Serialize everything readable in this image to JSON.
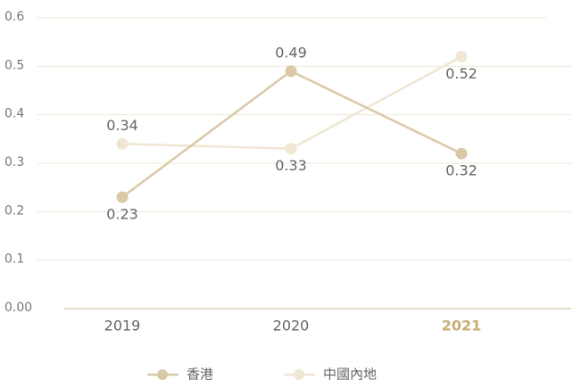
{
  "chart_data": {
    "type": "line",
    "categories": [
      "2019",
      "2020",
      "2021"
    ],
    "series": [
      {
        "name": "香港",
        "color": "#dac9a6",
        "values": [
          0.23,
          0.49,
          0.32
        ]
      },
      {
        "name": "中國內地",
        "color": "#efe6d3",
        "values": [
          0.34,
          0.33,
          0.52
        ]
      }
    ],
    "ylim": [
      0,
      0.6
    ],
    "yticks": [
      {
        "value": 0,
        "label": "0.00"
      },
      0.1,
      0.2,
      0.3,
      0.4,
      0.5,
      0.6
    ],
    "grid": true
  }
}
